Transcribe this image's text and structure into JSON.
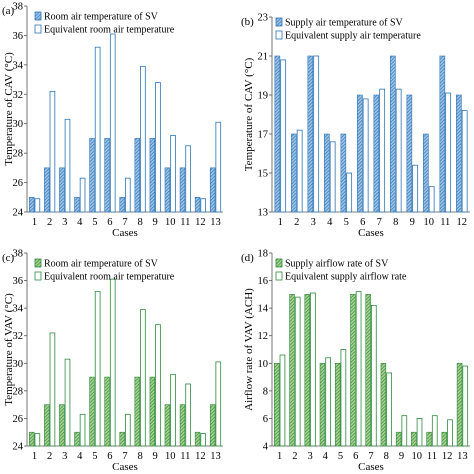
{
  "chart_data": [
    {
      "panel_label": "(a)",
      "type": "bar",
      "ylabel": "Temperature of CAV (°C)",
      "xlabel": "Cases",
      "categories": [
        "1",
        "2",
        "3",
        "4",
        "5",
        "6",
        "7",
        "8",
        "9",
        "10",
        "11",
        "12",
        "13"
      ],
      "ylim": [
        24,
        38
      ],
      "yticks": [
        24,
        26,
        28,
        30,
        32,
        34,
        36,
        38
      ],
      "legend_position": "top-left",
      "grid": false,
      "series": [
        {
          "name": "Room air temperature of SV",
          "style": "hatched",
          "color": "#2e75b6",
          "values": [
            25,
            27,
            27,
            25,
            29,
            29,
            25,
            29,
            29,
            27,
            27,
            25,
            27
          ]
        },
        {
          "name": "Equivalent room air temperature",
          "style": "outline",
          "color": "#2e75b6",
          "values": [
            24.9,
            32.2,
            30.3,
            26.3,
            35.2,
            36.1,
            26.3,
            33.9,
            32.8,
            29.2,
            28.5,
            24.9,
            30.1
          ]
        }
      ]
    },
    {
      "panel_label": "(b)",
      "type": "bar",
      "ylabel": "Temperature of CAV (°C)",
      "xlabel": "Cases",
      "categories": [
        "1",
        "2",
        "3",
        "4",
        "5",
        "6",
        "7",
        "8",
        "9",
        "10",
        "11",
        "12"
      ],
      "ylim": [
        13,
        23
      ],
      "yticks": [
        13,
        15,
        17,
        19,
        21,
        23
      ],
      "legend_position": "top-left",
      "grid": false,
      "series": [
        {
          "name": "Supply air temperature of SV",
          "style": "hatched",
          "color": "#2e75b6",
          "values": [
            21,
            17,
            21,
            17,
            17,
            19,
            19,
            21,
            19,
            17,
            21,
            19
          ]
        },
        {
          "name": "Equivalent supply air temperature",
          "style": "outline",
          "color": "#2e75b6",
          "values": [
            20.8,
            17.2,
            21,
            16.6,
            15,
            18.8,
            19.3,
            19.3,
            15.4,
            14.3,
            19.1,
            18.2
          ]
        }
      ]
    },
    {
      "panel_label": "(c)",
      "type": "bar",
      "ylabel": "Temperature of VAV (°C)",
      "xlabel": "Cases",
      "categories": [
        "1",
        "2",
        "3",
        "4",
        "5",
        "6",
        "7",
        "8",
        "9",
        "10",
        "11",
        "12",
        "13"
      ],
      "ylim": [
        24,
        38
      ],
      "yticks": [
        24,
        26,
        28,
        30,
        32,
        34,
        36,
        38
      ],
      "legend_position": "top-left",
      "grid": false,
      "series": [
        {
          "name": "Room air temperature of SV",
          "style": "hatched",
          "color": "#2e8b3e",
          "values": [
            25,
            27,
            27,
            25,
            29,
            29,
            25,
            29,
            29,
            27,
            27,
            25,
            27
          ]
        },
        {
          "name": "Equivalent room air temperature",
          "style": "outline",
          "color": "#2e8b3e",
          "values": [
            24.9,
            32.2,
            30.3,
            26.3,
            35.2,
            36.1,
            26.3,
            33.9,
            32.8,
            29.2,
            28.5,
            24.9,
            30.1
          ]
        }
      ]
    },
    {
      "panel_label": "(d)",
      "type": "bar",
      "ylabel": "Airflow rate of VAV (ACH)",
      "xlabel": "Cases",
      "categories": [
        "1",
        "2",
        "3",
        "4",
        "5",
        "6",
        "7",
        "8",
        "9",
        "10",
        "11",
        "12",
        "13"
      ],
      "ylim": [
        4,
        18
      ],
      "yticks": [
        4,
        6,
        8,
        10,
        12,
        14,
        16,
        18
      ],
      "legend_position": "top-left",
      "grid": false,
      "series": [
        {
          "name": "Supply airflow rate of SV",
          "style": "hatched",
          "color": "#2e8b3e",
          "values": [
            10,
            15,
            15,
            10,
            10,
            15,
            15,
            10,
            5,
            5,
            5,
            5,
            10
          ]
        },
        {
          "name": "Equivalent supply airflow rate",
          "style": "outline",
          "color": "#2e8b3e",
          "values": [
            10.6,
            14.8,
            15.1,
            10.4,
            11,
            15.2,
            14.2,
            9.3,
            6.2,
            6,
            6.2,
            5.9,
            9.8
          ]
        }
      ]
    }
  ]
}
